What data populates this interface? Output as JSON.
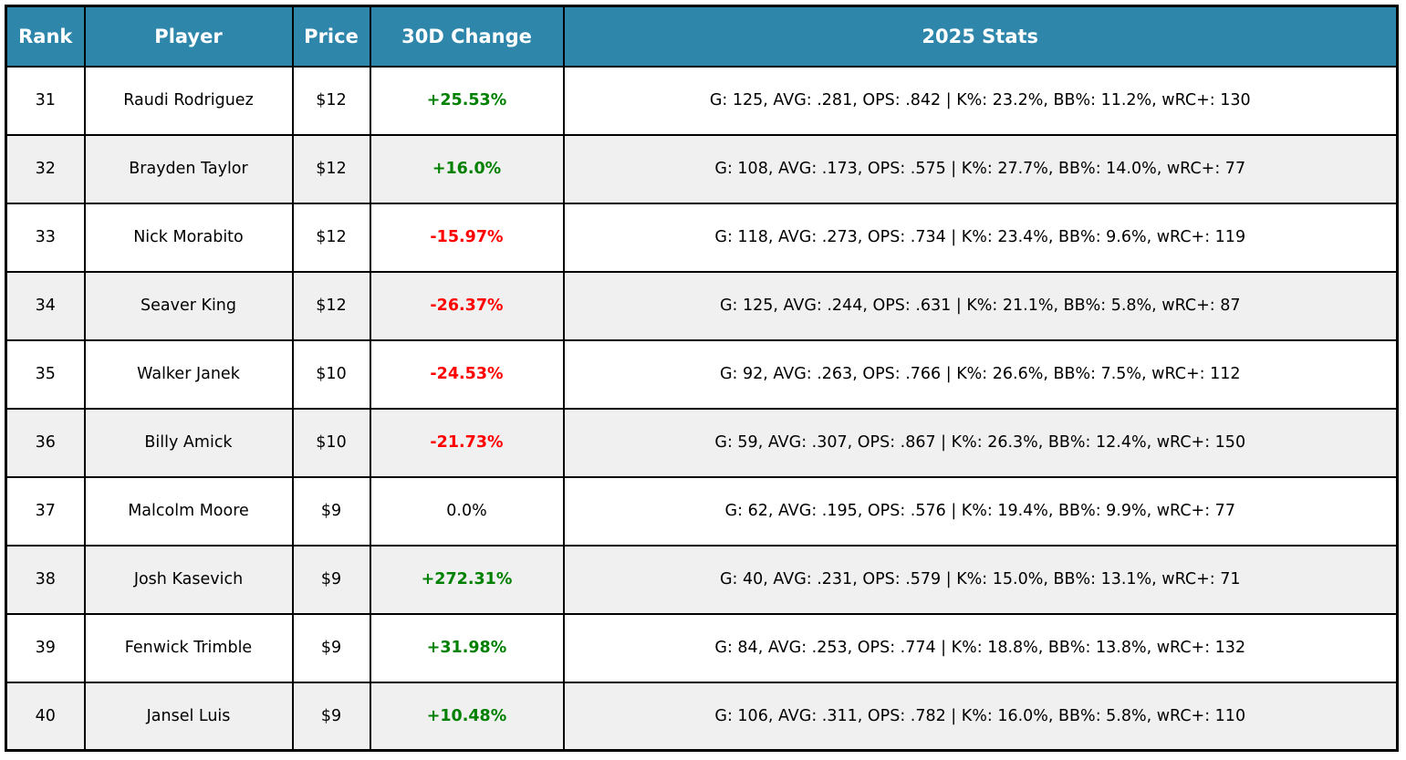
{
  "colors": {
    "header_bg": "#2e86ab",
    "header_text": "#ffffff",
    "positive": "#008000",
    "negative": "#ff0000",
    "text": "#000000",
    "row_alt": "#f0f0f0",
    "row_bg": "#ffffff",
    "border": "#000000"
  },
  "chart_data": {
    "type": "table",
    "title": "",
    "columns": [
      "Rank",
      "Player",
      "Price",
      "30D Change",
      "2025 Stats"
    ],
    "rows": [
      {
        "rank": "31",
        "player": "Raudi Rodriguez",
        "price": "$12",
        "change": "+25.53%",
        "change_direction": "up",
        "stats": "G: 125, AVG: .281, OPS: .842 | K%: 23.2%, BB%: 11.2%, wRC+: 130"
      },
      {
        "rank": "32",
        "player": "Brayden Taylor",
        "price": "$12",
        "change": "+16.0%",
        "change_direction": "up",
        "stats": "G: 108, AVG: .173, OPS: .575 | K%: 27.7%, BB%: 14.0%, wRC+: 77"
      },
      {
        "rank": "33",
        "player": "Nick Morabito",
        "price": "$12",
        "change": "-15.97%",
        "change_direction": "down",
        "stats": "G: 118, AVG: .273, OPS: .734 | K%: 23.4%, BB%: 9.6%, wRC+: 119"
      },
      {
        "rank": "34",
        "player": "Seaver King",
        "price": "$12",
        "change": "-26.37%",
        "change_direction": "down",
        "stats": "G: 125, AVG: .244, OPS: .631 | K%: 21.1%, BB%: 5.8%, wRC+: 87"
      },
      {
        "rank": "35",
        "player": "Walker Janek",
        "price": "$10",
        "change": "-24.53%",
        "change_direction": "down",
        "stats": "G: 92, AVG: .263, OPS: .766 | K%: 26.6%, BB%: 7.5%, wRC+: 112"
      },
      {
        "rank": "36",
        "player": "Billy Amick",
        "price": "$10",
        "change": "-21.73%",
        "change_direction": "down",
        "stats": "G: 59, AVG: .307, OPS: .867 | K%: 26.3%, BB%: 12.4%, wRC+: 150"
      },
      {
        "rank": "37",
        "player": "Malcolm Moore",
        "price": "$9",
        "change": "0.0%",
        "change_direction": "flat",
        "stats": "G: 62, AVG: .195, OPS: .576 | K%: 19.4%, BB%: 9.9%, wRC+: 77"
      },
      {
        "rank": "38",
        "player": "Josh Kasevich",
        "price": "$9",
        "change": "+272.31%",
        "change_direction": "up",
        "stats": "G: 40, AVG: .231, OPS: .579 | K%: 15.0%, BB%: 13.1%, wRC+: 71"
      },
      {
        "rank": "39",
        "player": "Fenwick Trimble",
        "price": "$9",
        "change": "+31.98%",
        "change_direction": "up",
        "stats": "G: 84, AVG: .253, OPS: .774 | K%: 18.8%, BB%: 13.8%, wRC+: 132"
      },
      {
        "rank": "40",
        "player": "Jansel Luis",
        "price": "$9",
        "change": "+10.48%",
        "change_direction": "up",
        "stats": "G: 106, AVG: .311, OPS: .782 | K%: 16.0%, BB%: 5.8%, wRC+: 110"
      }
    ]
  }
}
